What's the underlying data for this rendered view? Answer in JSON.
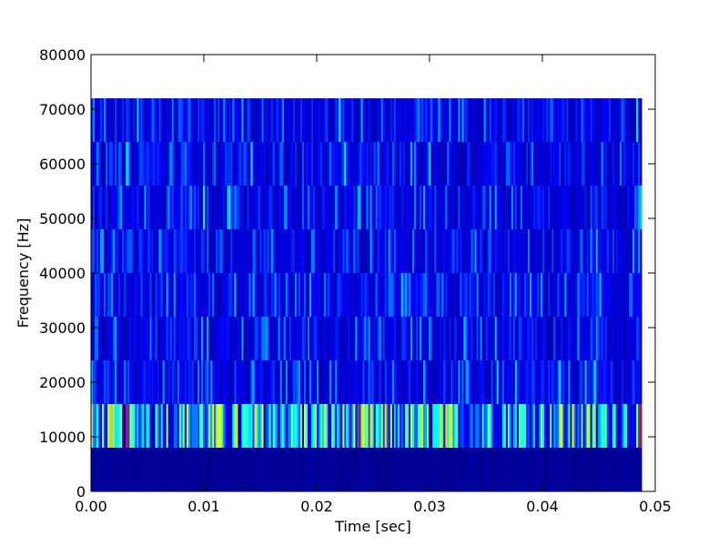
{
  "chart_data": {
    "type": "heatmap",
    "title": "",
    "xlabel": "Time [sec]",
    "ylabel": "Frequency [Hz]",
    "xlim": [
      0.0,
      0.05
    ],
    "ylim": [
      0,
      80000
    ],
    "x_ticks": [
      "0.00",
      "0.01",
      "0.02",
      "0.03",
      "0.04",
      "0.05"
    ],
    "y_ticks": [
      "0",
      "10000",
      "20000",
      "30000",
      "40000",
      "50000",
      "60000",
      "70000",
      "80000"
    ],
    "colormap": "jet",
    "time_extent": [
      0.0,
      0.0488
    ],
    "frequency_bins": [
      {
        "low": 0,
        "high": 8000,
        "level": 0.02
      },
      {
        "low": 8000,
        "high": 16000,
        "level": 0.35
      },
      {
        "low": 16000,
        "high": 24000,
        "level": 0.16
      },
      {
        "low": 24000,
        "high": 32000,
        "level": 0.14
      },
      {
        "low": 32000,
        "high": 40000,
        "level": 0.12
      },
      {
        "low": 40000,
        "high": 48000,
        "level": 0.11
      },
      {
        "low": 48000,
        "high": 56000,
        "level": 0.12
      },
      {
        "low": 56000,
        "high": 64000,
        "level": 0.11
      },
      {
        "low": 64000,
        "high": 72000,
        "level": 0.1
      }
    ],
    "grid": false,
    "legend": "none"
  },
  "colors": {
    "background": "#ffffff",
    "axes": "#000000",
    "jet_low": "#00008f",
    "jet_high": "#800000"
  }
}
